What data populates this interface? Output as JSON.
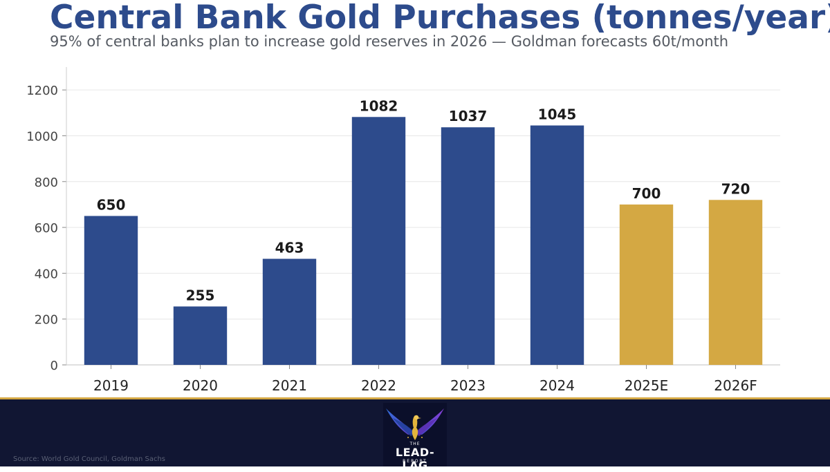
{
  "header": {
    "title": "Central Bank Gold Purchases (tonnes/year)",
    "subtitle": "95% of central banks plan to increase gold reserves in 2026 — Goldman forecasts 60t/month"
  },
  "chart_data": {
    "type": "bar",
    "title": "Central Bank Gold Purchases (tonnes/year)",
    "categories": [
      "2019",
      "2020",
      "2021",
      "2022",
      "2023",
      "2024",
      "2025E",
      "2026F"
    ],
    "values": [
      650,
      255,
      463,
      1082,
      1037,
      1045,
      700,
      720
    ],
    "data_labels": [
      "650",
      "255",
      "463",
      "1082",
      "1037",
      "1045",
      "700",
      "720"
    ],
    "bar_colors": [
      "#2d4b8c",
      "#2d4b8c",
      "#2d4b8c",
      "#2d4b8c",
      "#2d4b8c",
      "#2d4b8c",
      "#d4a843",
      "#d4a843"
    ],
    "xlabel": "",
    "ylabel": "",
    "ylim": [
      0,
      1300
    ],
    "yticks": [
      0,
      200,
      400,
      600,
      800,
      1000,
      1200
    ],
    "grid": true
  },
  "footer": {
    "source": "Source: World Gold Council, Goldman Sachs",
    "logo": {
      "icon": "phoenix-icon",
      "line1": "THE",
      "line2": "LEAD-LAG",
      "line3": "REPORT"
    }
  },
  "colors": {
    "historical": "#2d4b8c",
    "forecast": "#d4a843",
    "footer_bg": "#111633",
    "title": "#2d4b8c"
  }
}
